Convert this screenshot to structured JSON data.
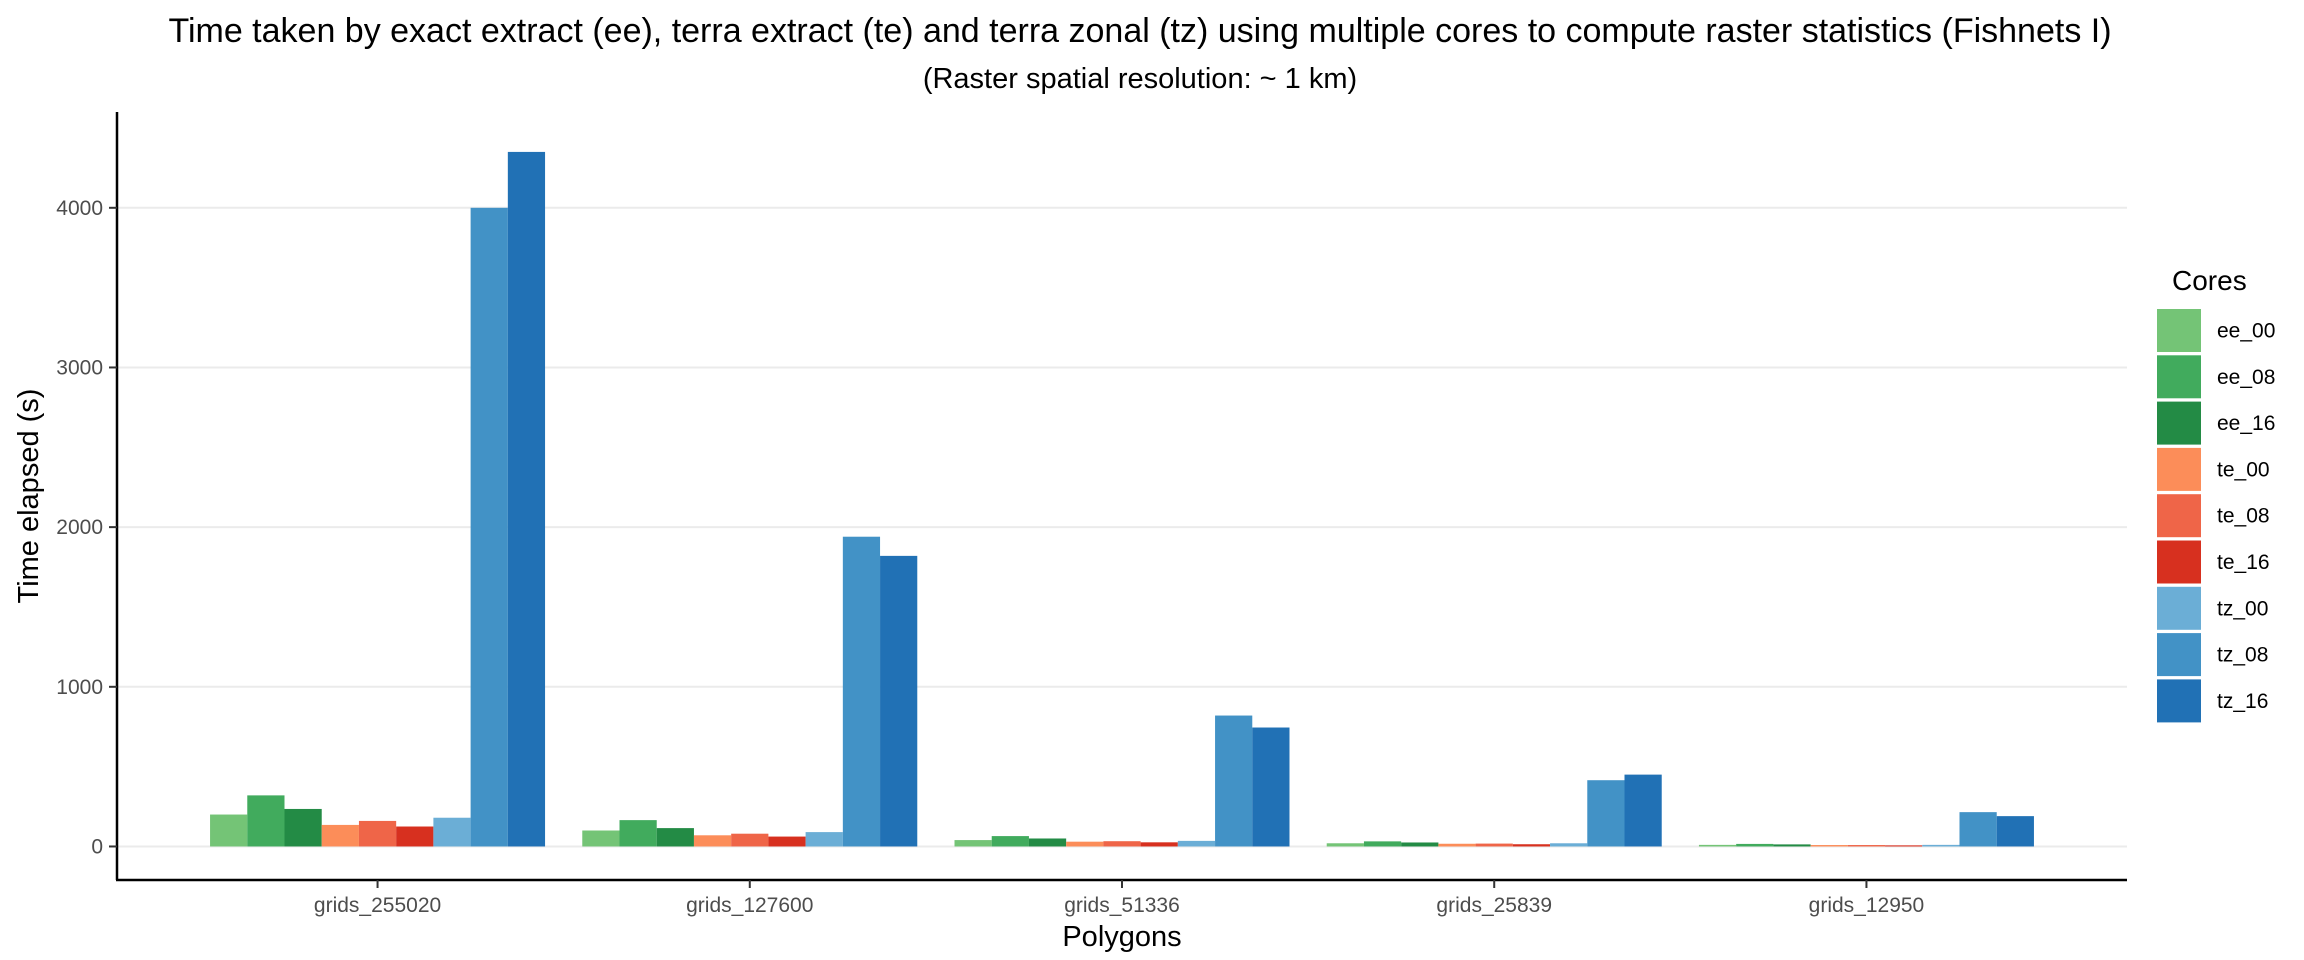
{
  "chart_data": {
    "type": "bar",
    "title": "Time taken by exact extract (ee), terra extract (te) and terra zonal (tz) using multiple cores to compute raster statistics (Fishnets I)",
    "subtitle": "(Raster spatial resolution: ~ 1 km)",
    "xlabel": "Polygons",
    "ylabel": "Time elapsed (s)",
    "ylim": [
      -210,
      4600
    ],
    "yticks": [
      0,
      1000,
      2000,
      3000,
      4000
    ],
    "grid": "horizontal major",
    "legend_title": "Cores",
    "legend_position": "right",
    "categories": [
      "grids_255020",
      "grids_127600",
      "grids_51336",
      "grids_25839",
      "grids_12950"
    ],
    "series": [
      {
        "name": "ee_00",
        "color": "#74c476",
        "values": [
          200,
          100,
          40,
          20,
          10
        ]
      },
      {
        "name": "ee_08",
        "color": "#41ab5d",
        "values": [
          320,
          165,
          65,
          32,
          16
        ]
      },
      {
        "name": "ee_16",
        "color": "#238b45",
        "values": [
          235,
          115,
          50,
          25,
          13
        ]
      },
      {
        "name": "te_00",
        "color": "#fc8d59",
        "values": [
          135,
          70,
          30,
          17,
          9
        ]
      },
      {
        "name": "te_08",
        "color": "#ef6548",
        "values": [
          160,
          80,
          33,
          18,
          9
        ]
      },
      {
        "name": "te_16",
        "color": "#d7301f",
        "values": [
          125,
          62,
          26,
          14,
          7
        ]
      },
      {
        "name": "tz_00",
        "color": "#6baed6",
        "values": [
          180,
          90,
          35,
          20,
          10
        ]
      },
      {
        "name": "tz_08",
        "color": "#4292c6",
        "values": [
          4000,
          1940,
          820,
          415,
          215
        ]
      },
      {
        "name": "tz_16",
        "color": "#2171b5",
        "values": [
          4350,
          1820,
          745,
          450,
          190
        ]
      }
    ]
  }
}
